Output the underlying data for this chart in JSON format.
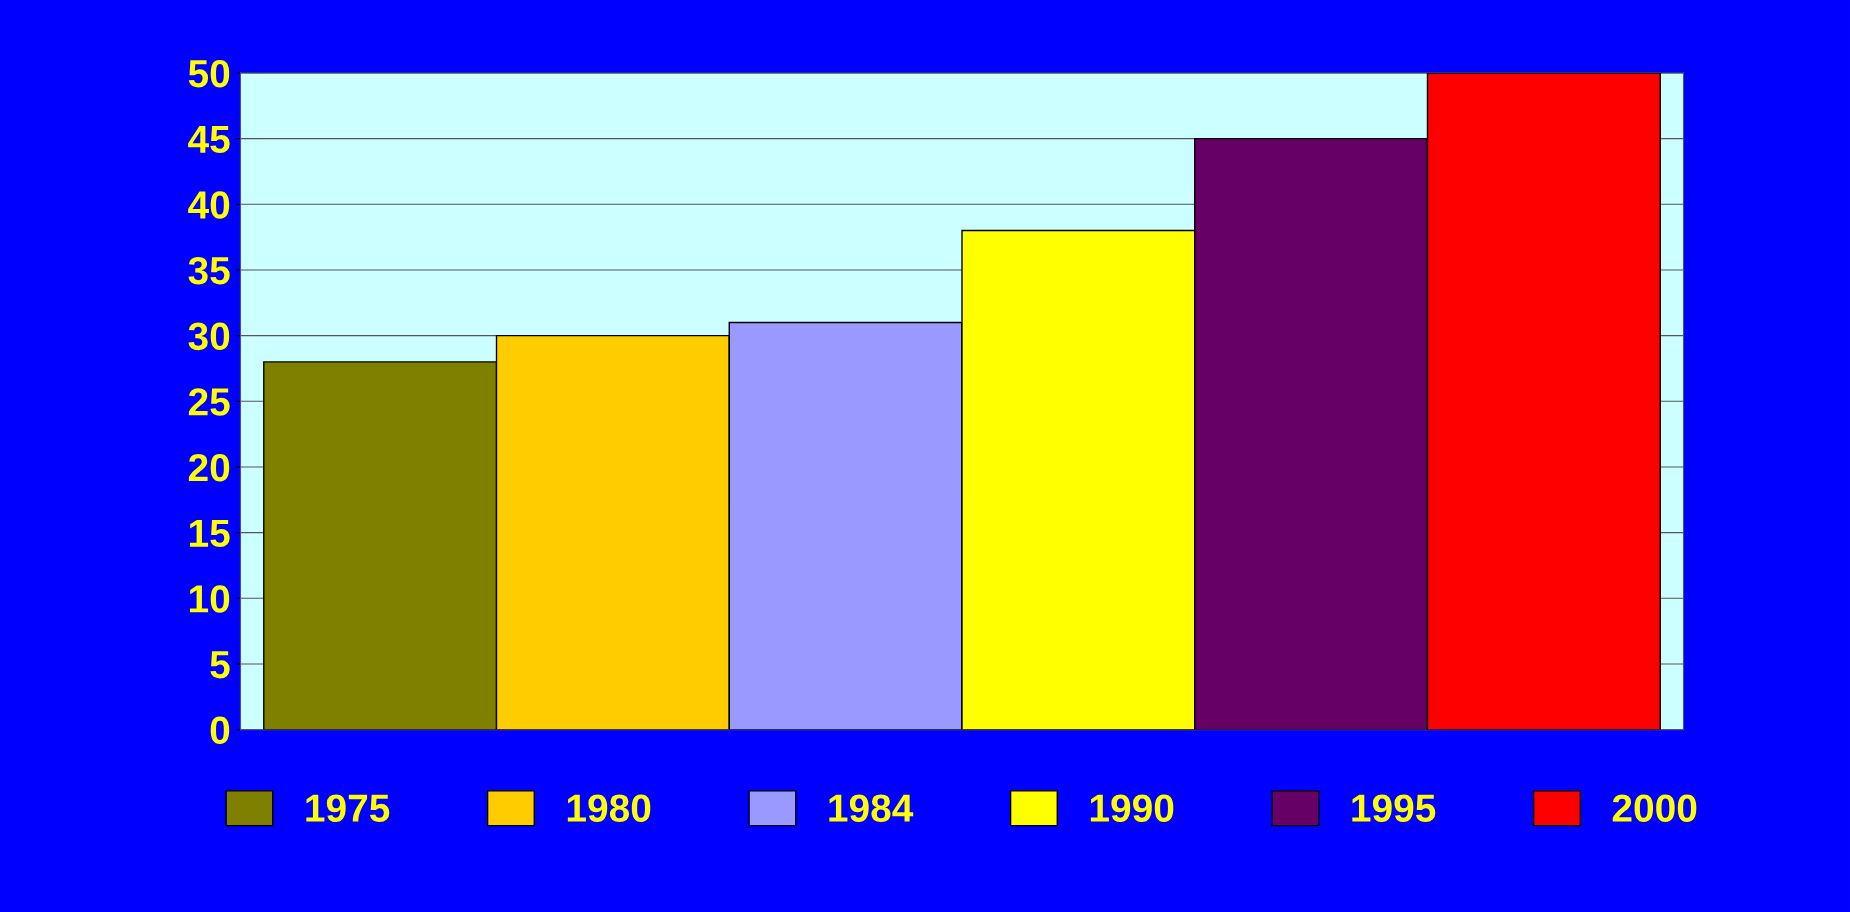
{
  "chart_data": {
    "type": "bar",
    "categories": [
      null,
      null,
      null,
      null,
      null,
      null
    ],
    "series": [
      {
        "name": "1975",
        "color": "#808000",
        "values": [
          28,
          null,
          null,
          null,
          null,
          null
        ]
      },
      {
        "name": "1980",
        "color": "#ffcc00",
        "values": [
          null,
          30,
          null,
          null,
          null,
          null
        ]
      },
      {
        "name": "1984",
        "color": "#9999ff",
        "values": [
          null,
          null,
          31,
          null,
          null,
          null
        ]
      },
      {
        "name": "1990",
        "color": "#ffff00",
        "values": [
          null,
          null,
          null,
          38,
          null,
          null
        ]
      },
      {
        "name": "1995",
        "color": "#660066",
        "values": [
          null,
          null,
          null,
          null,
          45,
          null
        ]
      },
      {
        "name": "2000",
        "color": "#ff0000",
        "values": [
          null,
          null,
          null,
          null,
          null,
          50
        ]
      }
    ],
    "ylim": [
      0,
      50
    ],
    "yticks": [
      0,
      5,
      10,
      15,
      20,
      25,
      30,
      35,
      40,
      45,
      50
    ],
    "grid": "y",
    "legend": "bottom"
  }
}
